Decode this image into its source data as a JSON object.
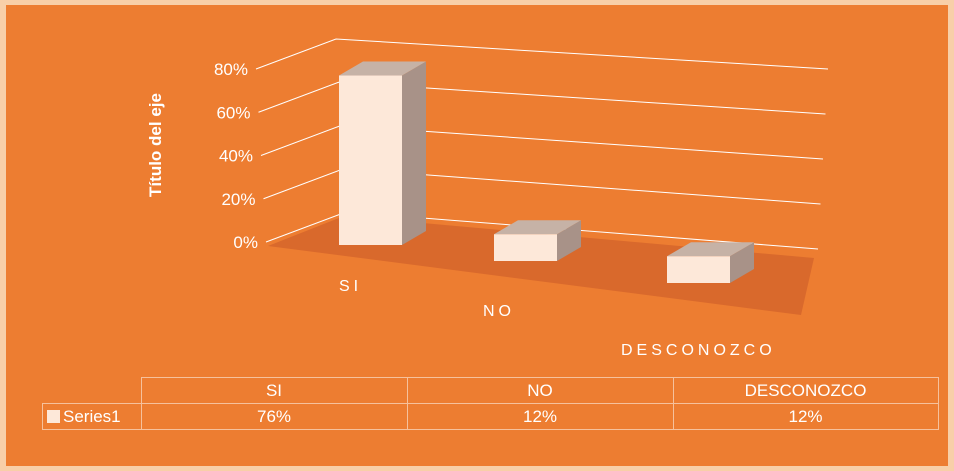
{
  "colors": {
    "page_background": "#f8cfa8",
    "plot_background": "#ed7d31",
    "floor": "#d9692c",
    "bar_front": "#fde8d9",
    "bar_side": "#a89288",
    "bar_top": "#c6b2a6",
    "text": "#ffffff"
  },
  "chart_data": {
    "type": "bar",
    "style": "3d-column",
    "title": "",
    "ylabel": "Título del eje",
    "xlabel": "",
    "categories": [
      "SI",
      "NO",
      "DESCONOZCO"
    ],
    "series": [
      {
        "name": "Series1",
        "values": [
          76,
          12,
          12
        ],
        "color": "#fde8d9"
      }
    ],
    "ylim": [
      0,
      80
    ],
    "yticks": [
      "0%",
      "20%",
      "40%",
      "60%",
      "80%"
    ],
    "grid": true,
    "legend": "data-table-below"
  },
  "data_table": {
    "headers": [
      "SI",
      "NO",
      "DESCONOZCO"
    ],
    "rows": [
      {
        "legend": "Series1",
        "cells": [
          "76%",
          "12%",
          "12%"
        ]
      }
    ]
  }
}
